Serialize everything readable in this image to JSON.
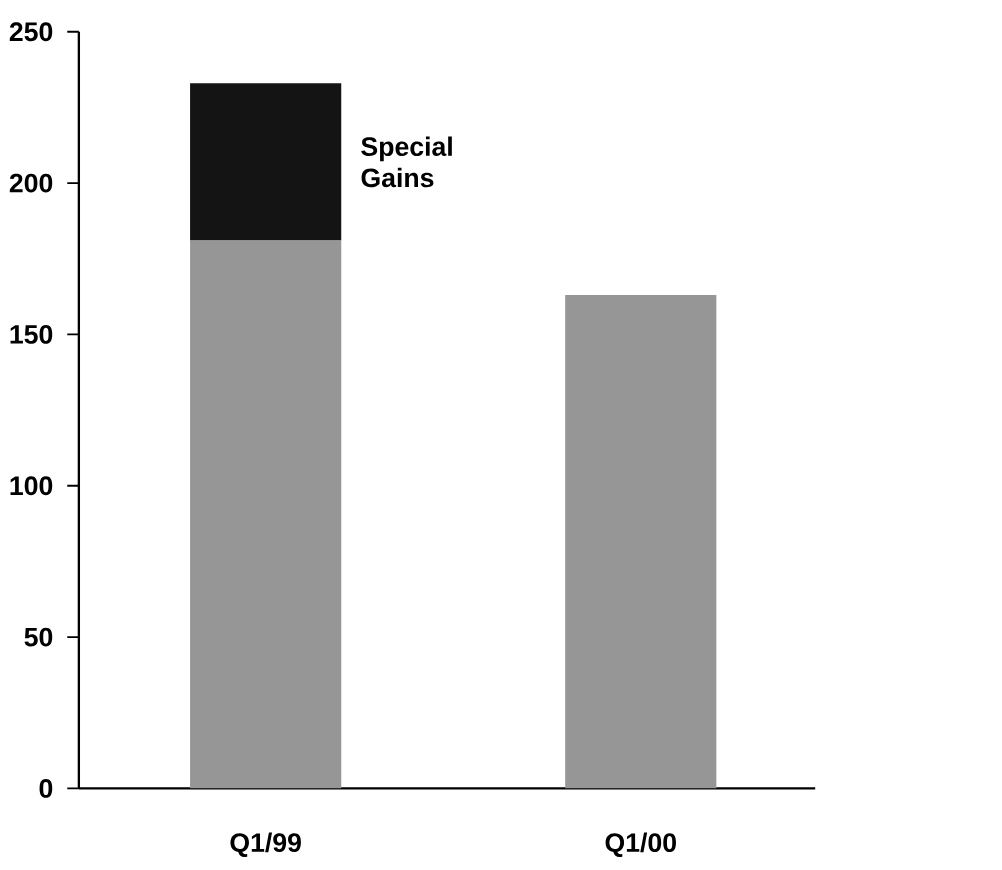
{
  "chart_data": {
    "type": "bar",
    "stacked": true,
    "categories": [
      "Q1/99",
      "Q1/00"
    ],
    "series": [
      {
        "color": "#969696",
        "values": [
          181,
          163
        ]
      },
      {
        "name": "Special Gains",
        "color": "#141414",
        "values": [
          52,
          null
        ]
      }
    ],
    "ylim": [
      0,
      250
    ],
    "yticks": [
      0,
      50,
      100,
      150,
      200,
      250
    ],
    "grid": false,
    "legend": false
  }
}
